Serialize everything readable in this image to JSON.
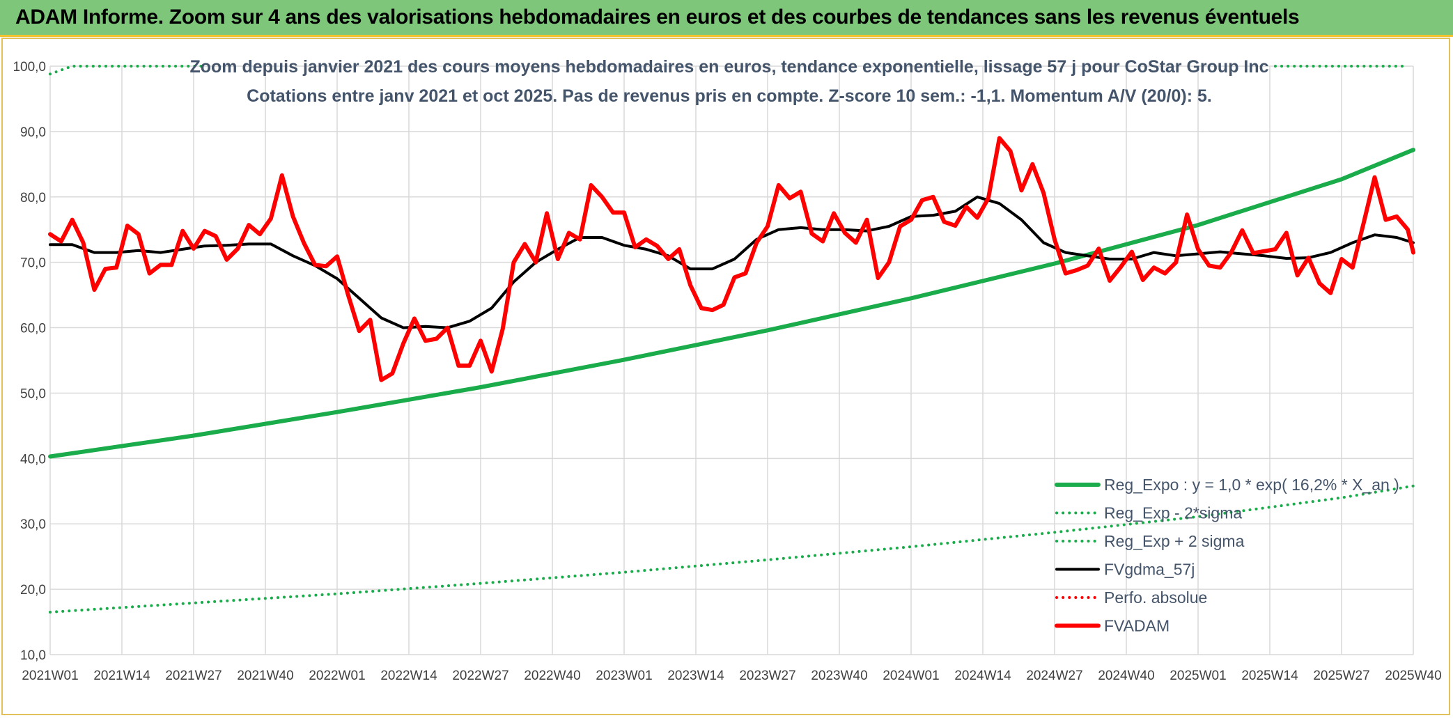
{
  "header": {
    "title": "ADAM Informe. Zoom sur 4 ans des valorisations hebdomadaires en euros et des courbes de tendances sans les revenus éventuels"
  },
  "colors": {
    "header_bg": "#7dc67a",
    "accent_border": "#f2c230",
    "trend_green": "#1aab4b",
    "price_red": "#ff0000",
    "average_black": "#000000",
    "title_text": "#44546a"
  },
  "chart_data": {
    "type": "line",
    "title": "Zoom depuis janvier 2021 des cours moyens hebdomadaires en euros, tendance exponentielle, lissage 57 j pour CoStar Group Inc",
    "subtitle": "Cotations entre janv 2021 et oct 2025. Pas de revenus pris en compte. Z-score 10 sem.: -1,1. Momentum A/V (20/0): 5.",
    "xlabel": "",
    "ylabel": "",
    "ylim": [
      10,
      100
    ],
    "yticks": [
      "100,0",
      "90,0",
      "80,0",
      "70,0",
      "60,0",
      "50,0",
      "40,0",
      "30,0",
      "20,0",
      "10,0"
    ],
    "xticks": [
      "2021W01",
      "2021W14",
      "2021W27",
      "2021W40",
      "2022W01",
      "2022W14",
      "2022W27",
      "2022W40",
      "2023W01",
      "2023W14",
      "2023W27",
      "2023W40",
      "2024W01",
      "2024W14",
      "2024W27",
      "2024W40",
      "2025W01",
      "2025W14",
      "2025W27",
      "2025W40"
    ],
    "x_range_weeks": [
      0,
      247
    ],
    "grid": true,
    "legend_position": "bottom-right",
    "legend": [
      "Reg_Expo : y = 1,0 * exp( 16,2% *  X_an )",
      "Reg_Exp - 2*sigma",
      "Reg_Exp + 2 sigma",
      "FVgdma_57j",
      "Perfo. absolue",
      "FVADAM"
    ],
    "series": [
      {
        "name": "Reg_Expo : y = 1,0 * exp( 16,2% *  X_an )",
        "style": "solid",
        "color": "#1aab4b",
        "width": 6,
        "x": [
          0,
          26,
          52,
          78,
          104,
          130,
          156,
          182,
          208,
          234,
          247
        ],
        "values": [
          40.3,
          43.5,
          47.1,
          50.9,
          55.1,
          59.6,
          64.5,
          69.8,
          75.7,
          82.7,
          87.2
        ]
      },
      {
        "name": "Reg_Exp - 2*sigma",
        "style": "dotted",
        "color": "#1aab4b",
        "width": 4,
        "x": [
          0,
          26,
          52,
          78,
          104,
          130,
          156,
          182,
          208,
          234,
          247
        ],
        "values": [
          16.5,
          17.9,
          19.3,
          20.9,
          22.6,
          24.5,
          26.5,
          28.7,
          31.1,
          34.0,
          35.8
        ]
      },
      {
        "name": "Reg_Exp + 2 sigma",
        "style": "dotted",
        "color": "#1aab4b",
        "width": 4,
        "x": [
          0,
          2,
          4,
          8,
          12,
          16,
          20,
          24,
          28
        ],
        "values": [
          98.8,
          99.4,
          100,
          100,
          100,
          100,
          100,
          100,
          100
        ],
        "x2": [
          222,
          228,
          234,
          240,
          246
        ],
        "values2": [
          100,
          100,
          100,
          100,
          100
        ]
      },
      {
        "name": "FVgdma_57j",
        "style": "solid",
        "color": "#000000",
        "width": 4,
        "x": [
          0,
          4,
          8,
          12,
          16,
          20,
          24,
          28,
          32,
          36,
          40,
          44,
          48,
          52,
          56,
          60,
          64,
          68,
          72,
          76,
          80,
          84,
          88,
          92,
          96,
          100,
          104,
          108,
          112,
          116,
          120,
          124,
          128,
          132,
          136,
          140,
          144,
          148,
          152,
          156,
          160,
          164,
          168,
          172,
          176,
          180,
          184,
          188,
          192,
          196,
          200,
          204,
          208,
          212,
          216,
          220,
          224,
          228,
          232,
          236,
          240,
          244,
          247
        ],
        "values": [
          72.7,
          72.7,
          71.5,
          71.5,
          71.8,
          71.5,
          72.0,
          72.5,
          72.6,
          72.8,
          72.8,
          71.0,
          69.5,
          67.5,
          64.5,
          61.5,
          60.0,
          60.2,
          60.0,
          61.0,
          63.0,
          67.0,
          70.0,
          72.0,
          73.8,
          73.8,
          72.6,
          72.0,
          71.0,
          69.0,
          69.0,
          70.5,
          73.5,
          75.0,
          75.3,
          75.0,
          75.0,
          74.8,
          75.5,
          77.0,
          77.2,
          77.8,
          80.0,
          79.0,
          76.5,
          73.0,
          71.5,
          71.0,
          70.5,
          70.5,
          71.5,
          71.0,
          71.3,
          71.6,
          71.3,
          71.0,
          70.6,
          70.7,
          71.5,
          73.0,
          74.2,
          73.8,
          73.0
        ]
      },
      {
        "name": "Perfo. absolue",
        "style": "dotted",
        "color": "#ff0000",
        "width": 4,
        "x": [],
        "values": []
      },
      {
        "name": "FVADAM",
        "style": "solid",
        "color": "#ff0000",
        "width": 6,
        "x": [
          0,
          2,
          4,
          6,
          8,
          10,
          12,
          14,
          16,
          18,
          20,
          22,
          24,
          26,
          28,
          30,
          32,
          34,
          36,
          38,
          40,
          42,
          44,
          46,
          48,
          50,
          52,
          54,
          56,
          58,
          60,
          62,
          64,
          66,
          68,
          70,
          72,
          74,
          76,
          78,
          80,
          82,
          84,
          86,
          88,
          90,
          92,
          94,
          96,
          98,
          100,
          102,
          104,
          106,
          108,
          110,
          112,
          114,
          116,
          118,
          120,
          122,
          124,
          126,
          128,
          130,
          132,
          134,
          136,
          138,
          140,
          142,
          144,
          146,
          148,
          150,
          152,
          154,
          156,
          158,
          160,
          162,
          164,
          166,
          168,
          170,
          172,
          174,
          176,
          178,
          180,
          182,
          184,
          186,
          188,
          190,
          192,
          194,
          196,
          198,
          200,
          202,
          204,
          206,
          208,
          210,
          212,
          214,
          216,
          218,
          220,
          222,
          224,
          226,
          228,
          230,
          232,
          234,
          236,
          238,
          240,
          242,
          244,
          246,
          247
        ],
        "values": [
          74.3,
          73.2,
          76.5,
          73.0,
          65.8,
          69.0,
          69.2,
          75.6,
          74.3,
          68.3,
          69.6,
          69.6,
          74.8,
          72.1,
          74.8,
          74.0,
          70.4,
          72.1,
          75.7,
          74.3,
          76.7,
          83.3,
          77.0,
          72.9,
          69.6,
          69.4,
          70.9,
          65.0,
          59.5,
          61.2,
          52.0,
          53.0,
          57.6,
          61.4,
          58.0,
          58.3,
          60.0,
          54.2,
          54.2,
          58.0,
          53.3,
          59.8,
          70.0,
          72.8,
          70.0,
          77.5,
          70.5,
          74.5,
          73.5,
          81.8,
          80.0,
          77.6,
          77.6,
          72.3,
          73.5,
          72.5,
          70.5,
          72.0,
          66.5,
          63.0,
          62.7,
          63.5,
          67.7,
          68.3,
          73.0,
          75.5,
          81.8,
          79.8,
          80.8,
          74.4,
          73.2,
          77.5,
          74.5,
          73.0,
          76.5,
          67.6,
          70.0,
          75.5,
          76.5,
          79.5,
          80.0,
          76.2,
          75.6,
          78.5,
          76.8,
          79.8,
          89.0,
          87.0,
          81.0,
          85.0,
          80.6,
          73.5,
          68.3,
          68.8,
          69.5,
          72.1,
          67.2,
          69.3,
          71.6,
          67.3,
          69.2,
          68.3,
          70.0,
          77.3,
          72.0,
          69.5,
          69.2,
          71.5,
          74.9,
          71.4,
          71.7,
          72.0,
          74.5,
          68.0,
          70.7,
          66.8,
          65.3,
          70.5,
          69.2,
          76.0,
          83.0,
          76.5,
          77.0,
          75.0,
          71.5
        ]
      }
    ]
  }
}
